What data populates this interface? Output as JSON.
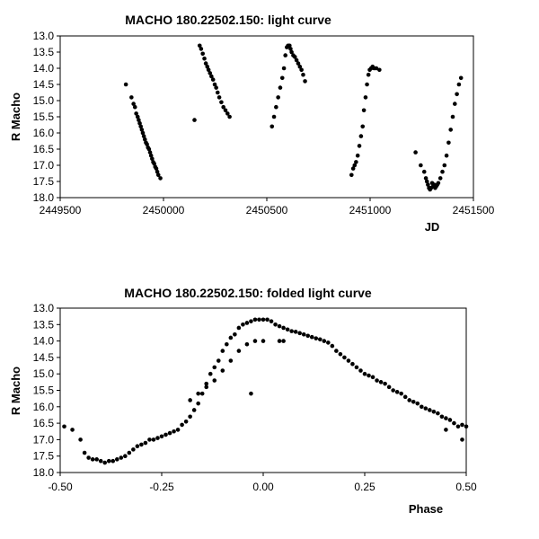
{
  "chart_data": [
    {
      "type": "scatter",
      "title": "MACHO 180.22502.150: light curve",
      "xlabel": "JD",
      "ylabel": "R Macho",
      "xlim": [
        2449500,
        2451500
      ],
      "ylim": [
        13.0,
        18.0
      ],
      "y_inverted": true,
      "grid": false,
      "legend": "none",
      "marker_color": "#000000",
      "x_ticks": [
        2449500,
        2450000,
        2450500,
        2451000,
        2451500
      ],
      "y_ticks": [
        13.0,
        13.5,
        14.0,
        14.5,
        15.0,
        15.5,
        16.0,
        16.5,
        17.0,
        17.5,
        18.0
      ],
      "x_tick_labels": [
        "2449500",
        "2450000",
        "2450500",
        "2451000",
        "2451500"
      ],
      "y_tick_labels": [
        "13.0",
        "13.5",
        "14.0",
        "14.5",
        "15.0",
        "15.5",
        "16.0",
        "16.5",
        "17.0",
        "17.5",
        "18.0"
      ],
      "series": [
        {
          "x": [
            2449818,
            2449845,
            2449855,
            2449862,
            2449868,
            2449875,
            2449880,
            2449885,
            2449890,
            2449895,
            2449900,
            2449905,
            2449910,
            2449915,
            2449920,
            2449925,
            2449930,
            2449935,
            2449940,
            2449945,
            2449950,
            2449955,
            2449960,
            2449965,
            2449970,
            2449975,
            2449985,
            2450150,
            2450175,
            2450182,
            2450190,
            2450198,
            2450205,
            2450212,
            2450218,
            2450225,
            2450232,
            2450240,
            2450248,
            2450255,
            2450262,
            2450270,
            2450280,
            2450290,
            2450300,
            2450310,
            2450320,
            2450525,
            2450535,
            2450545,
            2450555,
            2450565,
            2450575,
            2450583,
            2450590,
            2450597,
            2450603,
            2450610,
            2450615,
            2450620,
            2450628,
            2450636,
            2450644,
            2450652,
            2450660,
            2450668,
            2450676,
            2450685,
            2450910,
            2450918,
            2450925,
            2450932,
            2450940,
            2450948,
            2450956,
            2450964,
            2450970,
            2450978,
            2450985,
            2450992,
            2450998,
            2451005,
            2451012,
            2451020,
            2451030,
            2451045,
            2451220,
            2451245,
            2451262,
            2451270,
            2451275,
            2451280,
            2451285,
            2451290,
            2451295,
            2451300,
            2451305,
            2451310,
            2451315,
            2451320,
            2451325,
            2451330,
            2451340,
            2451350,
            2451360,
            2451370,
            2451380,
            2451390,
            2451400,
            2451410,
            2451420,
            2451430,
            2451440
          ],
          "y": [
            14.5,
            14.9,
            15.1,
            15.2,
            15.4,
            15.5,
            15.6,
            15.7,
            15.8,
            15.9,
            16.0,
            16.1,
            16.2,
            16.3,
            16.35,
            16.45,
            16.5,
            16.6,
            16.7,
            16.8,
            16.9,
            16.95,
            17.05,
            17.1,
            17.2,
            17.3,
            17.4,
            15.6,
            13.3,
            13.4,
            13.55,
            13.7,
            13.85,
            13.95,
            14.05,
            14.15,
            14.25,
            14.35,
            14.5,
            14.6,
            14.75,
            14.9,
            15.05,
            15.2,
            15.3,
            15.4,
            15.5,
            15.8,
            15.5,
            15.2,
            14.9,
            14.6,
            14.3,
            14.0,
            13.6,
            13.35,
            13.3,
            13.3,
            13.4,
            13.5,
            13.6,
            13.65,
            13.75,
            13.85,
            13.95,
            14.05,
            14.2,
            14.4,
            17.3,
            17.1,
            17.0,
            16.9,
            16.7,
            16.4,
            16.1,
            15.8,
            15.3,
            14.9,
            14.5,
            14.2,
            14.05,
            14.0,
            13.95,
            14.0,
            14.0,
            14.05,
            16.6,
            17.0,
            17.2,
            17.4,
            17.5,
            17.6,
            17.7,
            17.75,
            17.7,
            17.55,
            17.65,
            17.6,
            17.7,
            17.65,
            17.6,
            17.55,
            17.4,
            17.2,
            17.0,
            16.7,
            16.3,
            15.9,
            15.5,
            15.1,
            14.8,
            14.5,
            14.3
          ]
        }
      ]
    },
    {
      "type": "scatter",
      "title": "MACHO 180.22502.150: folded light curve",
      "xlabel": "Phase",
      "ylabel": "R Macho",
      "xlim": [
        -0.5,
        0.5
      ],
      "ylim": [
        13.0,
        18.0
      ],
      "y_inverted": true,
      "grid": false,
      "legend": "none",
      "marker_color": "#000000",
      "x_ticks": [
        -0.5,
        -0.25,
        0.0,
        0.25,
        0.5
      ],
      "y_ticks": [
        13.0,
        13.5,
        14.0,
        14.5,
        15.0,
        15.5,
        16.0,
        16.5,
        17.0,
        17.5,
        18.0
      ],
      "x_tick_labels": [
        "-0.50",
        "-0.25",
        "0.00",
        "0.25",
        "0.50"
      ],
      "y_tick_labels": [
        "13.0",
        "13.5",
        "14.0",
        "14.5",
        "15.0",
        "15.5",
        "16.0",
        "16.5",
        "17.0",
        "17.5",
        "18.0"
      ],
      "series": [
        {
          "x": [
            -0.49,
            -0.47,
            -0.45,
            -0.44,
            -0.43,
            -0.42,
            -0.41,
            -0.4,
            -0.39,
            -0.38,
            -0.37,
            -0.36,
            -0.35,
            -0.34,
            -0.33,
            -0.32,
            -0.31,
            -0.3,
            -0.29,
            -0.28,
            -0.27,
            -0.26,
            -0.25,
            -0.24,
            -0.23,
            -0.22,
            -0.21,
            -0.2,
            -0.19,
            -0.18,
            -0.17,
            -0.16,
            -0.15,
            -0.14,
            -0.13,
            -0.12,
            -0.11,
            -0.1,
            -0.09,
            -0.08,
            -0.07,
            -0.06,
            -0.05,
            -0.04,
            -0.03,
            -0.02,
            -0.01,
            0.0,
            0.01,
            0.02,
            0.03,
            0.04,
            0.05,
            0.06,
            0.07,
            0.08,
            0.09,
            0.1,
            0.11,
            0.12,
            0.13,
            0.14,
            0.15,
            0.16,
            0.17,
            0.18,
            0.19,
            0.2,
            0.21,
            0.22,
            0.23,
            0.24,
            0.25,
            0.26,
            0.27,
            0.28,
            0.29,
            0.3,
            0.31,
            0.32,
            0.33,
            0.34,
            0.35,
            0.36,
            0.37,
            0.38,
            0.39,
            0.4,
            0.41,
            0.42,
            0.43,
            0.44,
            0.45,
            0.46,
            0.47,
            0.48,
            0.49,
            0.5,
            -0.18,
            -0.16,
            -0.14,
            -0.12,
            -0.1,
            -0.08,
            -0.06,
            -0.04,
            -0.03,
            -0.02,
            0.0,
            0.04,
            0.05,
            0.45,
            0.49
          ],
          "y": [
            16.6,
            16.7,
            17.0,
            17.4,
            17.55,
            17.6,
            17.6,
            17.65,
            17.7,
            17.65,
            17.65,
            17.6,
            17.55,
            17.5,
            17.4,
            17.3,
            17.2,
            17.15,
            17.1,
            17.0,
            17.0,
            16.95,
            16.9,
            16.85,
            16.8,
            16.75,
            16.7,
            16.55,
            16.45,
            16.3,
            16.1,
            15.9,
            15.6,
            15.3,
            15.0,
            14.8,
            14.6,
            14.3,
            14.1,
            13.9,
            13.8,
            13.6,
            13.5,
            13.45,
            13.4,
            13.35,
            13.35,
            13.35,
            13.35,
            13.4,
            13.5,
            13.55,
            13.6,
            13.65,
            13.7,
            13.72,
            13.76,
            13.8,
            13.84,
            13.88,
            13.92,
            13.95,
            14.0,
            14.05,
            14.15,
            14.3,
            14.4,
            14.5,
            14.6,
            14.7,
            14.8,
            14.9,
            15.0,
            15.05,
            15.1,
            15.2,
            15.25,
            15.3,
            15.4,
            15.5,
            15.55,
            15.6,
            15.7,
            15.8,
            15.85,
            15.9,
            16.0,
            16.05,
            16.1,
            16.15,
            16.2,
            16.3,
            16.35,
            16.4,
            16.5,
            16.6,
            16.55,
            16.6,
            15.8,
            15.6,
            15.4,
            15.2,
            14.9,
            14.6,
            14.3,
            14.1,
            15.6,
            14.0,
            14.0,
            14.0,
            14.0,
            16.7,
            17.0
          ]
        }
      ]
    }
  ]
}
